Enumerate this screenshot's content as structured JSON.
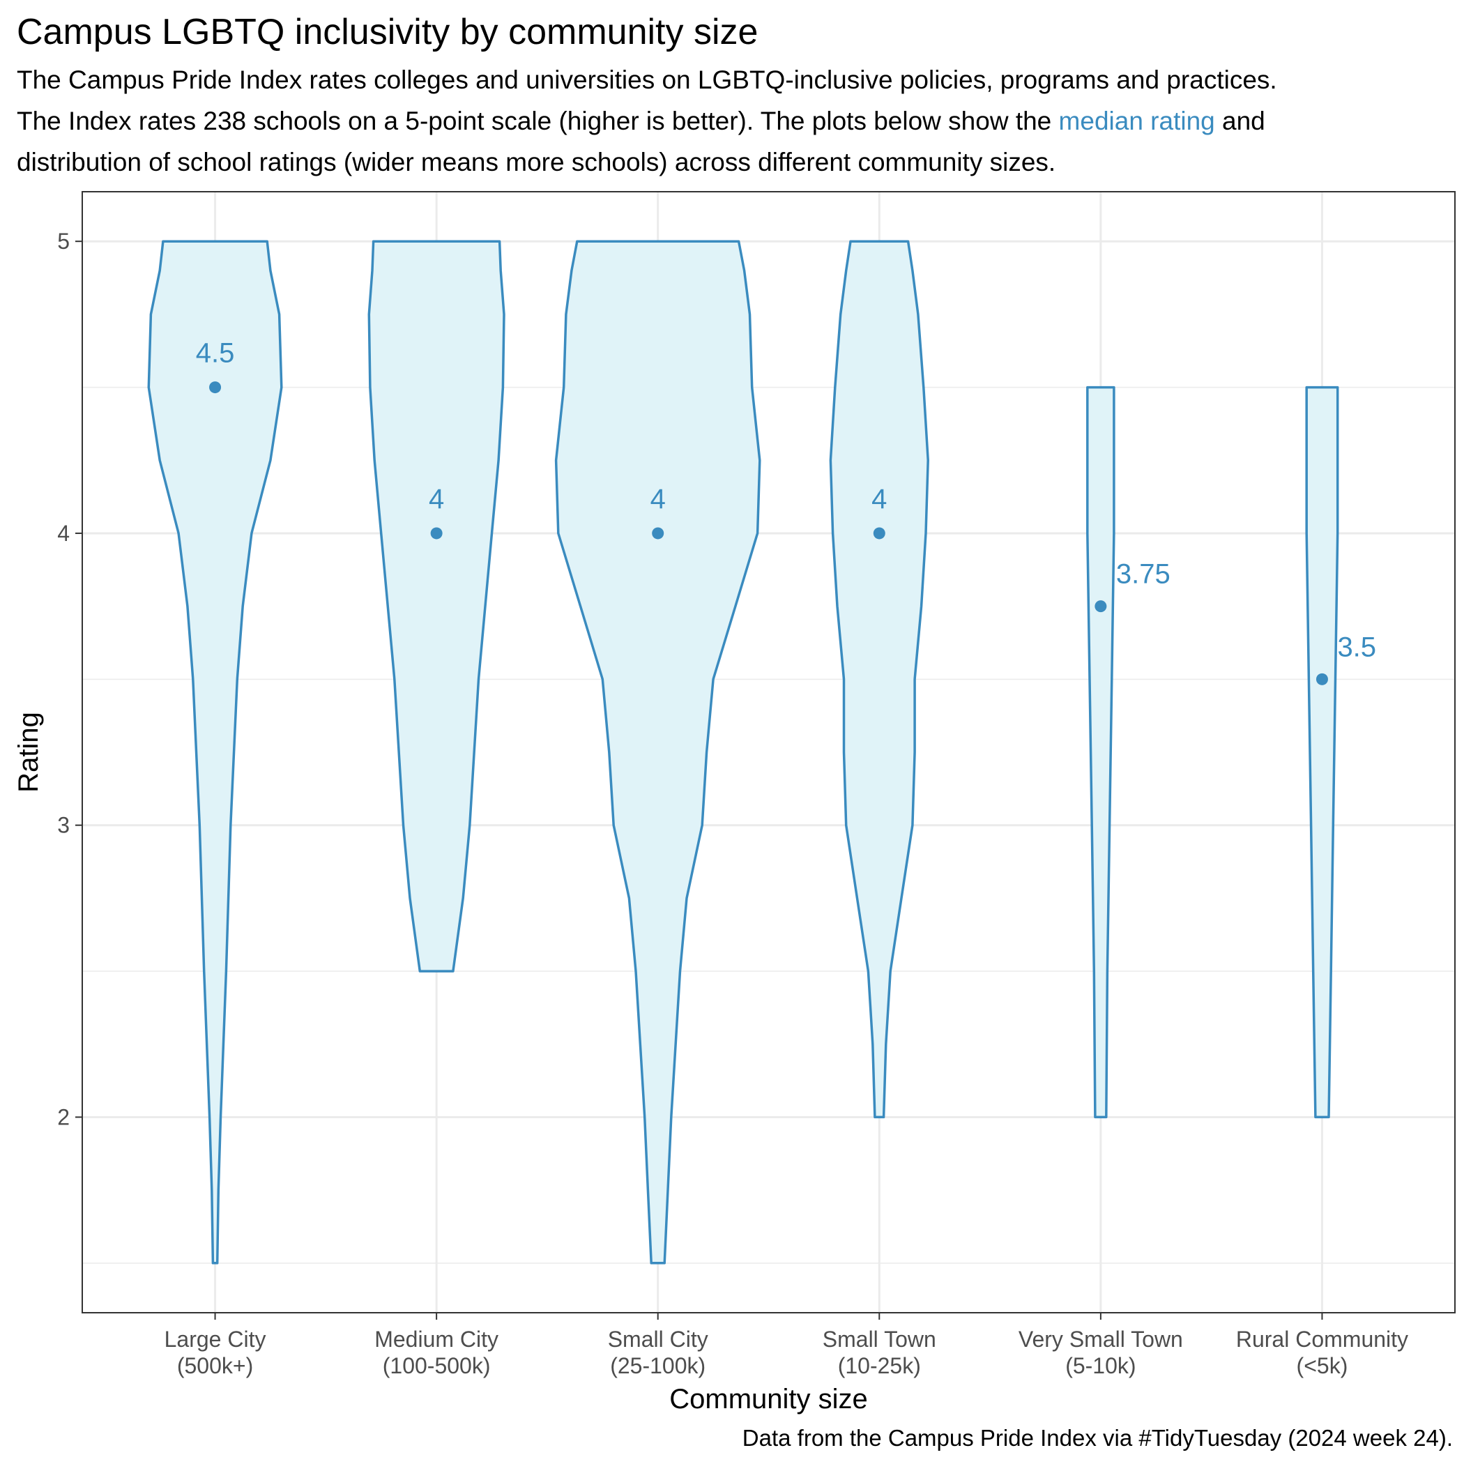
{
  "title": "Campus LGBTQ inclusivity by community size",
  "subtitle": {
    "line1": "The Campus Pride Index rates colleges and universities on LGBTQ-inclusive policies, programs and practices.",
    "line2_pre": "The Index rates 238 schools on a 5-point scale (higher is better). The plots below show the ",
    "line2_highlight": "median rating",
    "line2_post": " and",
    "line3": "distribution of school ratings (wider means more schools) across different community sizes."
  },
  "caption": "Data from the Campus Pride Index via #TidyTuesday (2024 week 24).",
  "colors": {
    "accent": "#3a8bbf",
    "violin_fill": "#e0f3f8",
    "grid": "#ebebeb",
    "panel_border": "#333333",
    "axis_text": "#4d4d4d"
  },
  "chart_data": {
    "type": "violin",
    "xlabel": "Community size",
    "ylabel": "Rating",
    "ylim": [
      1.33,
      5.17
    ],
    "yticks": [
      2,
      3,
      4,
      5
    ],
    "grid": true,
    "categories": [
      {
        "line1": "Large City",
        "line2": "(500k+)",
        "median": 4.5,
        "median_label": "4.5",
        "label_position": "above",
        "profile": [
          [
            1.5,
            0.02
          ],
          [
            1.75,
            0.03
          ],
          [
            2.0,
            0.05
          ],
          [
            2.5,
            0.1
          ],
          [
            3.0,
            0.14
          ],
          [
            3.5,
            0.2
          ],
          [
            3.75,
            0.25
          ],
          [
            4.0,
            0.33
          ],
          [
            4.25,
            0.5
          ],
          [
            4.5,
            0.6
          ],
          [
            4.75,
            0.58
          ],
          [
            4.9,
            0.5
          ],
          [
            5.0,
            0.47
          ]
        ]
      },
      {
        "line1": "Medium City",
        "line2": "(100-500k)",
        "median": 4.0,
        "median_label": "4",
        "label_position": "above",
        "profile": [
          [
            2.5,
            0.15
          ],
          [
            2.75,
            0.24
          ],
          [
            3.0,
            0.3
          ],
          [
            3.5,
            0.38
          ],
          [
            4.0,
            0.5
          ],
          [
            4.25,
            0.56
          ],
          [
            4.5,
            0.6
          ],
          [
            4.75,
            0.61
          ],
          [
            4.9,
            0.58
          ],
          [
            5.0,
            0.57
          ]
        ]
      },
      {
        "line1": "Small City",
        "line2": "(25-100k)",
        "median": 4.0,
        "median_label": "4",
        "label_position": "above",
        "profile": [
          [
            1.5,
            0.06
          ],
          [
            1.75,
            0.09
          ],
          [
            2.0,
            0.12
          ],
          [
            2.5,
            0.2
          ],
          [
            2.75,
            0.26
          ],
          [
            3.0,
            0.4
          ],
          [
            3.25,
            0.44
          ],
          [
            3.5,
            0.5
          ],
          [
            3.75,
            0.7
          ],
          [
            4.0,
            0.9
          ],
          [
            4.25,
            0.92
          ],
          [
            4.5,
            0.85
          ],
          [
            4.75,
            0.83
          ],
          [
            4.9,
            0.78
          ],
          [
            5.0,
            0.73
          ]
        ]
      },
      {
        "line1": "Small Town",
        "line2": "(10-25k)",
        "median": 4.0,
        "median_label": "4",
        "label_position": "above",
        "profile": [
          [
            2.0,
            0.04
          ],
          [
            2.25,
            0.06
          ],
          [
            2.5,
            0.1
          ],
          [
            2.75,
            0.2
          ],
          [
            3.0,
            0.3
          ],
          [
            3.25,
            0.32
          ],
          [
            3.5,
            0.32
          ],
          [
            3.75,
            0.38
          ],
          [
            4.0,
            0.42
          ],
          [
            4.25,
            0.44
          ],
          [
            4.5,
            0.4
          ],
          [
            4.75,
            0.35
          ],
          [
            4.9,
            0.3
          ],
          [
            5.0,
            0.26
          ]
        ]
      },
      {
        "line1": "Very Small Town",
        "line2": "(5-10k)",
        "median": 3.75,
        "median_label": "3.75",
        "label_position": "right",
        "profile": [
          [
            2.0,
            0.05
          ],
          [
            2.5,
            0.06
          ],
          [
            3.0,
            0.08
          ],
          [
            3.5,
            0.1
          ],
          [
            4.0,
            0.12
          ],
          [
            4.25,
            0.12
          ],
          [
            4.5,
            0.12
          ]
        ]
      },
      {
        "line1": "Rural Community",
        "line2": "(<5k)",
        "median": 3.5,
        "median_label": "3.5",
        "label_position": "right",
        "profile": [
          [
            2.0,
            0.06
          ],
          [
            2.5,
            0.08
          ],
          [
            3.0,
            0.1
          ],
          [
            3.5,
            0.12
          ],
          [
            4.0,
            0.14
          ],
          [
            4.25,
            0.14
          ],
          [
            4.5,
            0.14
          ]
        ]
      }
    ]
  }
}
